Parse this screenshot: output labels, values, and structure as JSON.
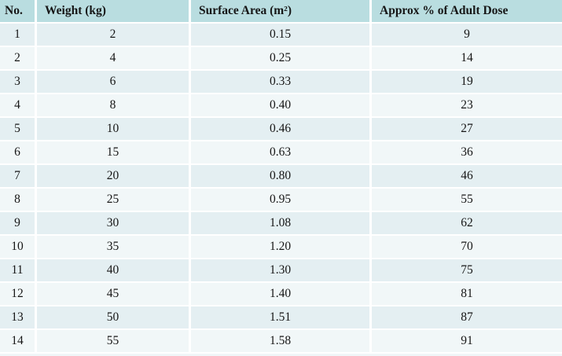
{
  "table": {
    "columns": [
      {
        "key": "no",
        "label": "No."
      },
      {
        "key": "weight",
        "label": "Weight (kg)"
      },
      {
        "key": "surface_area",
        "label": "Surface Area (m²)"
      },
      {
        "key": "dose",
        "label": "Approx % of Adult Dose"
      }
    ],
    "rows": [
      [
        "1",
        "2",
        "0.15",
        "9"
      ],
      [
        "2",
        "4",
        "0.25",
        "14"
      ],
      [
        "3",
        "6",
        "0.33",
        "19"
      ],
      [
        "4",
        "8",
        "0.40",
        "23"
      ],
      [
        "5",
        "10",
        "0.46",
        "27"
      ],
      [
        "6",
        "15",
        "0.63",
        "36"
      ],
      [
        "7",
        "20",
        "0.80",
        "46"
      ],
      [
        "8",
        "25",
        "0.95",
        "55"
      ],
      [
        "9",
        "30",
        "1.08",
        "62"
      ],
      [
        "10",
        "35",
        "1.20",
        "70"
      ],
      [
        "11",
        "40",
        "1.30",
        "75"
      ],
      [
        "12",
        "45",
        "1.40",
        "81"
      ],
      [
        "13",
        "50",
        "1.51",
        "87"
      ],
      [
        "14",
        "55",
        "1.58",
        "91"
      ]
    ]
  },
  "colors": {
    "header_bg": "#b9dde0",
    "row_odd_bg": "#e4eff2",
    "row_even_bg": "#f1f7f8",
    "separator": "#ffffff",
    "text": "#161616",
    "strip_bg": "#f0f6f8"
  },
  "chart_data": {
    "type": "table",
    "title": "",
    "columns": [
      "No.",
      "Weight (kg)",
      "Surface Area (m²)",
      "Approx % of Adult Dose"
    ],
    "rows": [
      [
        1,
        2,
        0.15,
        9
      ],
      [
        2,
        4,
        0.25,
        14
      ],
      [
        3,
        6,
        0.33,
        19
      ],
      [
        4,
        8,
        0.4,
        23
      ],
      [
        5,
        10,
        0.46,
        27
      ],
      [
        6,
        15,
        0.63,
        36
      ],
      [
        7,
        20,
        0.8,
        46
      ],
      [
        8,
        25,
        0.95,
        55
      ],
      [
        9,
        30,
        1.08,
        62
      ],
      [
        10,
        35,
        1.2,
        70
      ],
      [
        11,
        40,
        1.3,
        75
      ],
      [
        12,
        45,
        1.4,
        81
      ],
      [
        13,
        50,
        1.51,
        87
      ],
      [
        14,
        55,
        1.58,
        91
      ]
    ],
    "legend": "none",
    "grid": "white separators between teal/light-blue banded rows"
  }
}
